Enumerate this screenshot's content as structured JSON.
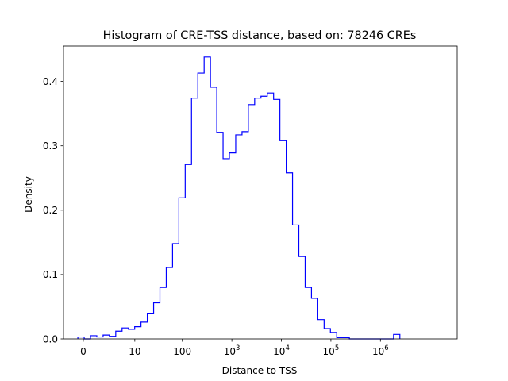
{
  "chart_data": {
    "type": "histogram",
    "title": "Histogram of CRE-TSS distance, based on: 78246 CREs",
    "xlabel": "Distance to TSS",
    "ylabel": "Density",
    "x_scale": "symlog (log10(1 + distance))",
    "xlim": [
      -0.4,
      7.55
    ],
    "ylim": [
      0,
      0.455
    ],
    "xticks": [
      {
        "pos": 0,
        "label": "0"
      },
      {
        "pos": 1.04,
        "label": "10"
      },
      {
        "pos": 2.0,
        "label": "100"
      },
      {
        "pos": 3.0,
        "label": "10^3",
        "base": "10",
        "exp": "3"
      },
      {
        "pos": 4.0,
        "label": "10^4",
        "base": "10",
        "exp": "4"
      },
      {
        "pos": 5.0,
        "label": "10^5",
        "base": "10",
        "exp": "5"
      },
      {
        "pos": 6.0,
        "label": "10^6",
        "base": "10",
        "exp": "6"
      }
    ],
    "yticks": [
      0.0,
      0.1,
      0.2,
      0.3,
      0.4
    ],
    "bin_start": -0.11,
    "bin_width": 0.1275,
    "values": [
      0.003,
      0.0,
      0.005,
      0.003,
      0.006,
      0.004,
      0.012,
      0.017,
      0.015,
      0.019,
      0.026,
      0.04,
      0.056,
      0.08,
      0.111,
      0.148,
      0.219,
      0.271,
      0.374,
      0.413,
      0.438,
      0.391,
      0.321,
      0.28,
      0.289,
      0.317,
      0.322,
      0.364,
      0.374,
      0.377,
      0.382,
      0.372,
      0.308,
      0.258,
      0.177,
      0.128,
      0.08,
      0.063,
      0.03,
      0.016,
      0.01,
      0.002,
      0.002,
      0.0,
      0.0,
      0.0,
      0.0,
      0.0,
      0.0,
      0.0,
      0.007
    ],
    "colors": {
      "line": "#0000ff",
      "axes": "#000000",
      "background": "#ffffff"
    },
    "grid": false,
    "legend": "none"
  }
}
